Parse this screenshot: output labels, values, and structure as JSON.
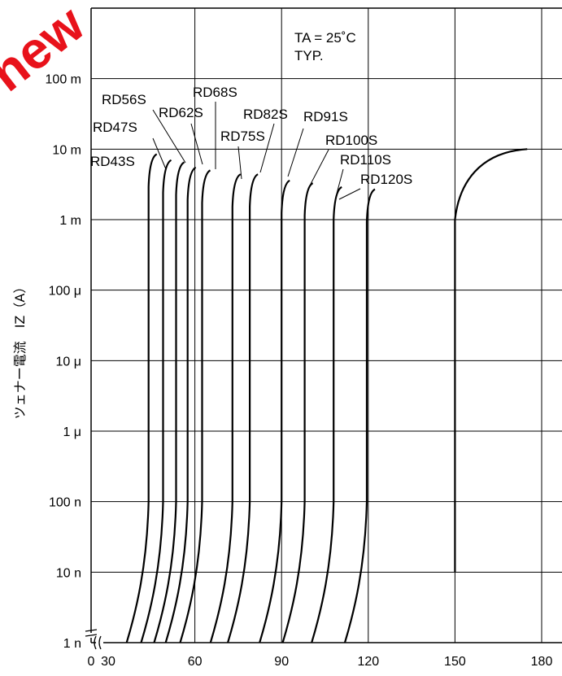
{
  "watermark": "new",
  "chart_data": {
    "type": "line",
    "title": "",
    "xlabel": "",
    "ylabel": "ツェナー電流　IZ（A）",
    "conditions": [
      "TA = 25˚C",
      "TYP."
    ],
    "x_scale": "linear with axis break between 0 and 30",
    "y_scale": "log",
    "xlim": [
      30,
      180
    ],
    "ylim": [
      "1 n",
      "1 Ⅿ"
    ],
    "x_ticks": [
      "0",
      "30",
      "60",
      "90",
      "120",
      "150",
      "180"
    ],
    "y_ticks": [
      "1 n",
      "10 n",
      "100 n",
      "1 μ",
      "10 μ",
      "100 μ",
      "1 m",
      "10 m",
      "100 m"
    ],
    "grid": true,
    "series": [
      {
        "name": "RD43S",
        "knee": 44.0,
        "top": 0.0085
      },
      {
        "name": "RD47S",
        "knee": 49.0,
        "top": 0.007
      },
      {
        "name": "RD56S",
        "knee": 53.5,
        "top": 0.0065
      },
      {
        "name": "RD62S",
        "knee": 57.5,
        "top": 0.0055
      },
      {
        "name": "RD68S",
        "knee": 62.5,
        "top": 0.005
      },
      {
        "name": "RD75S",
        "knee": 73.0,
        "top": 0.0044
      },
      {
        "name": "RD82S",
        "knee": 79.0,
        "top": 0.0044
      },
      {
        "name": "RD91S",
        "knee": 90.0,
        "top": 0.0036
      },
      {
        "name": "RD100S",
        "knee": 98.0,
        "top": 0.0033
      },
      {
        "name": "RD110S",
        "knee": 108.0,
        "top": 0.0029
      },
      {
        "name": "RD120S",
        "knee": 119.5,
        "top": 0.0027
      }
    ],
    "extra_curve": {
      "knee": 150.0,
      "bottom": 1e-08,
      "top": 0.01,
      "end_x": 175.0
    }
  }
}
